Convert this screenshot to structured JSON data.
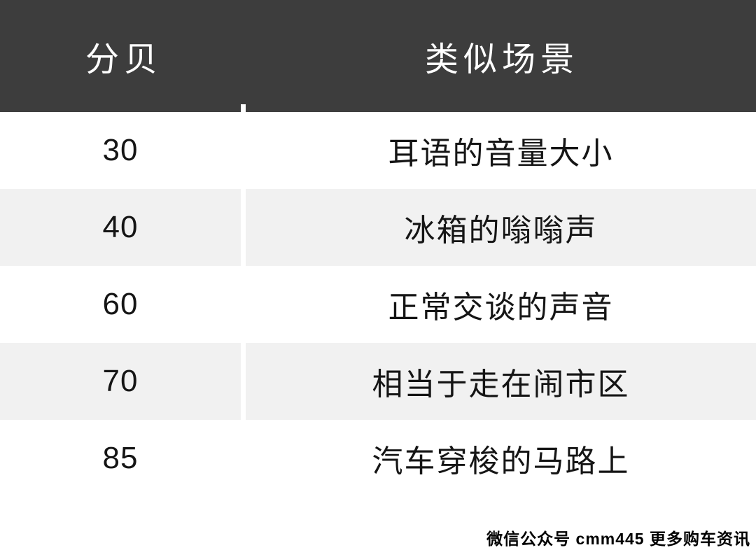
{
  "chart_data": {
    "type": "table",
    "title": "",
    "columns": [
      "分贝",
      "类似场景"
    ],
    "rows": [
      [
        "30",
        "耳语的音量大小"
      ],
      [
        "40",
        "冰箱的嗡嗡声"
      ],
      [
        "60",
        "正常交谈的声音"
      ],
      [
        "70",
        "相当于走在闹市区"
      ],
      [
        "85",
        "汽车穿梭的马路上"
      ]
    ],
    "layout_hints": {
      "header_style": "dark-band",
      "zebra_striping": "rows 2 and 4 shaded",
      "column_1_align": "center",
      "column_2_align": "center"
    }
  },
  "watermark": {
    "text": "微信公众号 cmm445 更多购车资讯"
  },
  "colors": {
    "header_bg": "#3d3d3d",
    "header_text": "#ffffff",
    "row_bg": "#ffffff",
    "row_alt_bg": "#f1f1f1",
    "body_text": "#151515",
    "watermark_text": "#000000"
  }
}
